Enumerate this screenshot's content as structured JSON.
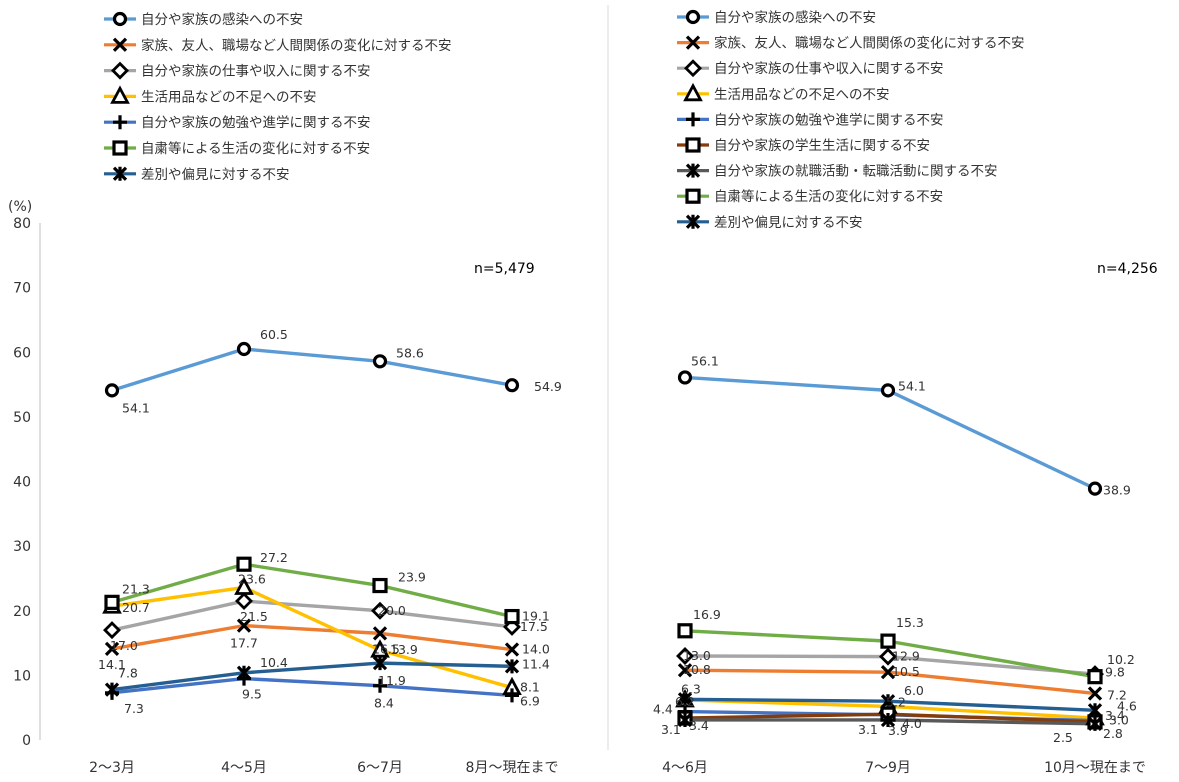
{
  "chart_data": {
    "type": "line",
    "y_unit": "(%)",
    "ylim": [
      0,
      80
    ],
    "y_ticks": [
      0,
      10,
      20,
      30,
      40,
      50,
      60,
      70,
      80
    ],
    "grid": false,
    "panels": [
      {
        "n_label": "n=5,479",
        "categories": [
          "2～3月",
          "4～5月",
          "6～7月",
          "8月～現在まで"
        ],
        "series": [
          {
            "name": "自分や家族の感染への不安",
            "color": "#5b9bd5",
            "marker": "circle",
            "values": [
              54.1,
              60.5,
              58.6,
              54.9
            ]
          },
          {
            "name": "家族、友人、職場など人間関係の変化に対する不安",
            "color": "#ed7d31",
            "marker": "x",
            "values": [
              14.1,
              17.7,
              16.5,
              14.0
            ]
          },
          {
            "name": "自分や家族の仕事や収入に関する不安",
            "color": "#a5a5a5",
            "marker": "diamond",
            "values": [
              17.0,
              21.5,
              20.0,
              17.5
            ]
          },
          {
            "name": "生活用品などの不足への不安",
            "color": "#ffc000",
            "marker": "triangle",
            "values": [
              20.7,
              23.6,
              13.9,
              8.1
            ]
          },
          {
            "name": "自分や家族の勉強や進学に関する不安",
            "color": "#4472c4",
            "marker": "plus",
            "values": [
              7.3,
              9.5,
              8.4,
              6.9
            ]
          },
          {
            "name": "自粛等による生活の変化に対する不安",
            "color": "#70ad47",
            "marker": "square",
            "values": [
              21.3,
              27.2,
              23.9,
              19.1
            ]
          },
          {
            "name": "差別や偏見に対する不安",
            "color": "#255e91",
            "marker": "star",
            "values": [
              7.8,
              10.4,
              11.9,
              11.4
            ]
          }
        ]
      },
      {
        "n_label": "n=4,256",
        "categories": [
          "4～6月",
          "7～9月",
          "10月～現在まで"
        ],
        "series": [
          {
            "name": "自分や家族の感染への不安",
            "color": "#5b9bd5",
            "marker": "circle",
            "values": [
              56.1,
              54.1,
              38.9
            ]
          },
          {
            "name": "家族、友人、職場など人間関係の変化に対する不安",
            "color": "#ed7d31",
            "marker": "x",
            "values": [
              10.8,
              10.5,
              7.2
            ]
          },
          {
            "name": "自分や家族の仕事や収入に関する不安",
            "color": "#a5a5a5",
            "marker": "diamond",
            "values": [
              13.0,
              12.9,
              10.2
            ]
          },
          {
            "name": "生活用品などの不足への不安",
            "color": "#ffc000",
            "marker": "triangle",
            "values": [
              6.2,
              5.2,
              3.4
            ]
          },
          {
            "name": "自分や家族の勉強や進学に関する不安",
            "color": "#4472c4",
            "marker": "plus",
            "values": [
              4.4,
              3.9,
              3.0
            ]
          },
          {
            "name": "自分や家族の学生生活に関する不安",
            "color": "#843c0c",
            "marker": "square",
            "values": [
              3.4,
              4.0,
              2.8
            ]
          },
          {
            "name": "自分や家族の就職活動・転職活動に関する不安",
            "color": "#595959",
            "marker": "star",
            "values": [
              3.1,
              3.1,
              2.5
            ]
          },
          {
            "name": "自粛等による生活の変化に対する不安",
            "color": "#70ad47",
            "marker": "square",
            "values": [
              16.9,
              15.3,
              9.8
            ]
          },
          {
            "name": "差別や偏見に対する不安",
            "color": "#255e91",
            "marker": "star",
            "values": [
              6.3,
              6.0,
              4.6
            ]
          }
        ]
      }
    ]
  }
}
